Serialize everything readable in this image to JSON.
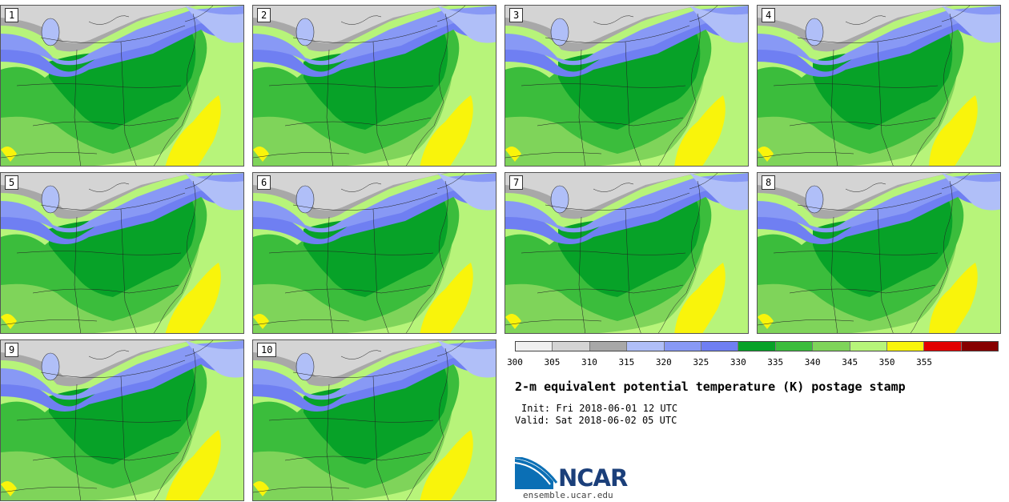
{
  "panels": [
    {
      "label": "1"
    },
    {
      "label": "2"
    },
    {
      "label": "3"
    },
    {
      "label": "4"
    },
    {
      "label": "5"
    },
    {
      "label": "6"
    },
    {
      "label": "7"
    },
    {
      "label": "8"
    },
    {
      "label": "9"
    },
    {
      "label": "10"
    }
  ],
  "colorbar": {
    "colors": [
      "#f0f0f0",
      "#d4d4d4",
      "#a8a8a8",
      "#b0bff8",
      "#8899f5",
      "#6f7ff2",
      "#07a228",
      "#3bbd3c",
      "#7fd45a",
      "#b7f47a",
      "#f9f40b",
      "#e20000",
      "#870000"
    ],
    "ticks": [
      "300",
      "305",
      "310",
      "315",
      "320",
      "325",
      "330",
      "335",
      "340",
      "345",
      "350",
      "355"
    ]
  },
  "title": "2-m equivalent potential temperature (K) postage stamp",
  "init": "Init: Fri 2018-06-01 12 UTC",
  "valid": "Valid: Sat 2018-06-02 05 UTC",
  "logo_text": "NCAR",
  "site": "ensemble.ucar.edu"
}
